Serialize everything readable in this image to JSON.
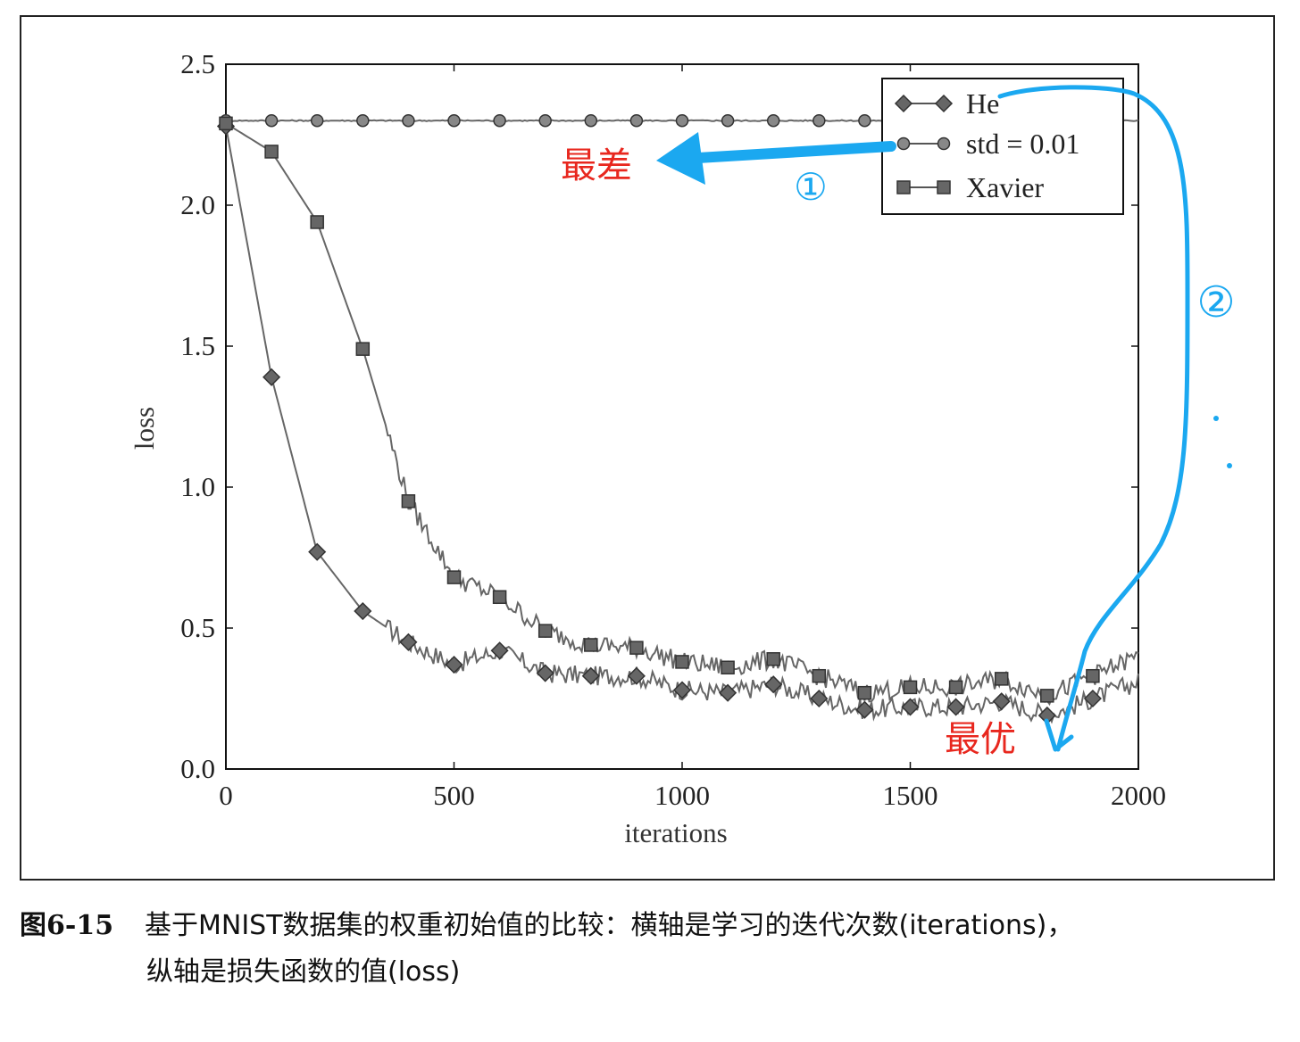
{
  "chart_data": {
    "type": "line",
    "xlabel": "iterations",
    "ylabel": "loss",
    "xlim": [
      0,
      2000
    ],
    "ylim": [
      0,
      2.5
    ],
    "x_ticks": [
      "0",
      "500",
      "1000",
      "1500",
      "2000"
    ],
    "y_ticks": [
      "0.0",
      "0.5",
      "1.0",
      "1.5",
      "2.0",
      "2.5"
    ],
    "grid": false,
    "legend_position": "top-right",
    "marker_x": [
      0,
      100,
      200,
      300,
      400,
      500,
      600,
      700,
      800,
      900,
      1000,
      1100,
      1200,
      1300,
      1400,
      1500,
      1600,
      1700,
      1800,
      1900
    ],
    "series": [
      {
        "name": "He",
        "marker": "diamond",
        "values": [
          2.28,
          1.39,
          0.77,
          0.56,
          0.45,
          0.37,
          0.42,
          0.34,
          0.33,
          0.33,
          0.28,
          0.27,
          0.3,
          0.25,
          0.21,
          0.22,
          0.22,
          0.24,
          0.19,
          0.25
        ]
      },
      {
        "name": "std = 0.01",
        "marker": "circle",
        "values": [
          2.3,
          2.3,
          2.3,
          2.3,
          2.3,
          2.3,
          2.3,
          2.3,
          2.3,
          2.3,
          2.3,
          2.3,
          2.3,
          2.3,
          2.3,
          2.3,
          2.3,
          2.3,
          2.3,
          2.3
        ]
      },
      {
        "name": "Xavier",
        "marker": "square",
        "values": [
          2.29,
          2.19,
          1.94,
          1.49,
          0.95,
          0.68,
          0.61,
          0.49,
          0.44,
          0.43,
          0.38,
          0.36,
          0.39,
          0.33,
          0.27,
          0.29,
          0.29,
          0.32,
          0.26,
          0.33
        ]
      }
    ]
  },
  "annotations": {
    "worst_label": "最差",
    "best_label": "最优",
    "mark_1": "①",
    "mark_2": "②",
    "handwriting_color": "#1ba8f0",
    "label_color": "#e8271e"
  },
  "caption": {
    "figure_number": "图6-15",
    "line1": "基于MNIST数据集的权重初始值的比较：横轴是学习的迭代次数(iterations)，",
    "line2": "纵轴是损失函数的值(loss)"
  }
}
